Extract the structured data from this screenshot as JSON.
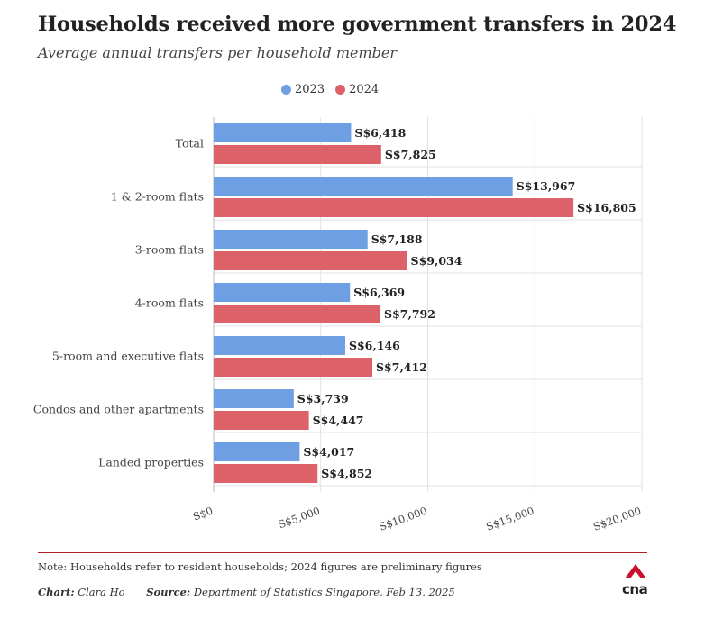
{
  "title": "Households received more government transfers in 2024",
  "subtitle": "Average annual transfers per household member",
  "colors": {
    "2023": "#6e9fe3",
    "2024": "#dd6169",
    "grid": "#e2e2e2",
    "axis": "#bbbbbb",
    "rule": "#b0202a",
    "logo": "#c8102e"
  },
  "chart_data": {
    "type": "bar",
    "orientation": "horizontal",
    "categories": [
      "Total",
      "1 & 2-room flats",
      "3-room flats",
      "4-room flats",
      "5-room and executive flats",
      "Condos and other apartments",
      "Landed properties"
    ],
    "series": [
      {
        "name": "2023",
        "values": [
          6418,
          13967,
          7188,
          6369,
          6146,
          3739,
          4017
        ],
        "labels": [
          "S$6,418",
          "S$13,967",
          "S$7,188",
          "S$6,369",
          "S$6,146",
          "S$3,739",
          "S$4,017"
        ]
      },
      {
        "name": "2024",
        "values": [
          7825,
          16805,
          9034,
          7792,
          7412,
          4447,
          4852
        ],
        "labels": [
          "S$7,825",
          "S$16,805",
          "S$9,034",
          "S$7,792",
          "S$7,412",
          "S$4,447",
          "S$4,852"
        ]
      }
    ],
    "xlim": [
      0,
      20000
    ],
    "xticks": [
      0,
      5000,
      10000,
      15000,
      20000
    ],
    "xtick_labels": [
      "S$0",
      "S$5,000",
      "S$10,000",
      "S$15,000",
      "S$20,000"
    ],
    "grid": true,
    "legend": "top"
  },
  "footer": {
    "note": "Note: Households refer to resident households; 2024 figures are preliminary figures",
    "chart_credit_label": "Chart:",
    "chart_credit": "Clara Ho",
    "source_label": "Source:",
    "source": "Department of Statistics Singapore, Feb 13, 2025",
    "logo_text": "cna"
  }
}
